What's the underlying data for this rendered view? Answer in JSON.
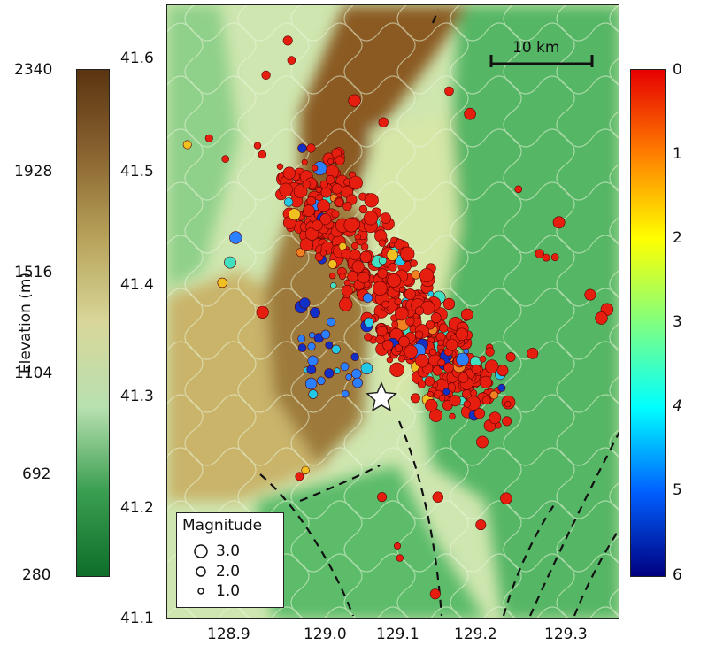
{
  "elevation_colorbar": {
    "title": "Elevation (m)",
    "ticks": [
      "2340",
      "1928",
      "1516",
      "1104",
      "692",
      "280"
    ],
    "colors": [
      "#5a3410",
      "#8a6430",
      "#b8a35a",
      "#d8d79a",
      "#b8e0b0",
      "#3a9e50",
      "#0e6e2a"
    ]
  },
  "depth_colorbar": {
    "ticks": [
      "0",
      "1",
      "2",
      "3",
      "4",
      "5",
      "6"
    ],
    "colors": [
      "#e60000",
      "#ff7f00",
      "#ffff00",
      "#80ff80",
      "#00ffff",
      "#0060ff",
      "#000080"
    ]
  },
  "map": {
    "y_ticks": [
      "41.6",
      "41.5",
      "41.4",
      "41.3",
      "41.2",
      "41.1"
    ],
    "x_ticks": [
      "128.9",
      "129.0",
      "129.1",
      "129.2",
      "129.3"
    ],
    "scale_bar_label": "10 km",
    "mainshock_symbol": "star",
    "event_color": "#e61e10"
  },
  "legend": {
    "title": "Magnitude",
    "entries": [
      {
        "label": "3.0"
      },
      {
        "label": "2.0"
      },
      {
        "label": "1.0"
      }
    ]
  }
}
